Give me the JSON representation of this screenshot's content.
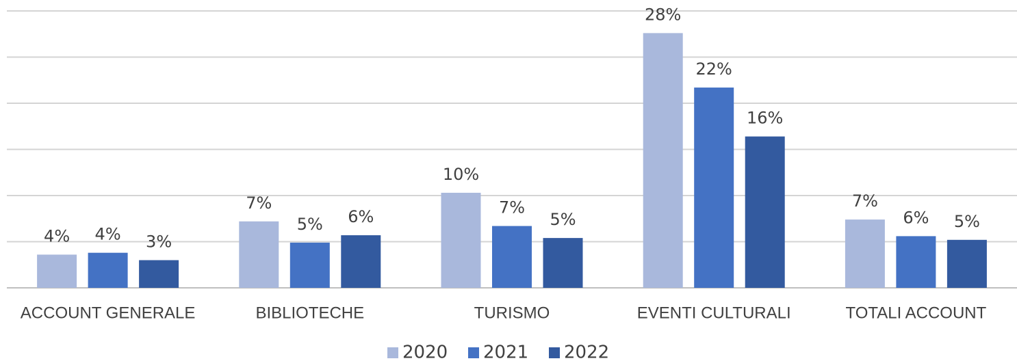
{
  "chart_data": {
    "type": "bar",
    "categories": [
      "ACCOUNT GENERALE",
      "BIBLIOTECHE",
      "TURISMO",
      "EVENTI CULTURALI",
      "TOTALI ACCOUNT"
    ],
    "series": [
      {
        "name": "2020",
        "color": "#a9b8dc",
        "values": [
          3.6,
          7.2,
          10.3,
          27.6,
          7.4
        ],
        "value_labels": [
          "4%",
          "7%",
          "10%",
          "28%",
          "7%"
        ]
      },
      {
        "name": "2021",
        "color": "#4472c4",
        "values": [
          3.8,
          4.9,
          6.7,
          21.7,
          5.6
        ],
        "value_labels": [
          "4%",
          "5%",
          "7%",
          "22%",
          "6%"
        ]
      },
      {
        "name": "2022",
        "color": "#335a9f",
        "values": [
          3.0,
          5.7,
          5.4,
          16.4,
          5.2
        ],
        "value_labels": [
          "3%",
          "6%",
          "5%",
          "16%",
          "5%"
        ]
      }
    ],
    "ylim": [
      0,
      30
    ],
    "yticks": [
      0,
      5,
      10,
      15,
      20,
      25,
      30
    ],
    "grid": true,
    "legend": "bottom"
  }
}
